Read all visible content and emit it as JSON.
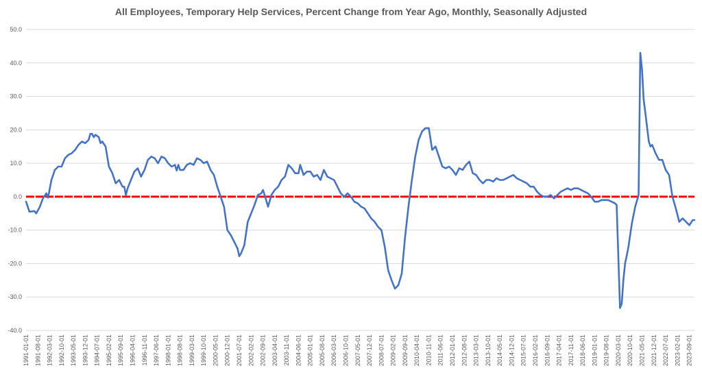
{
  "chart_data": {
    "type": "line",
    "title": "All Employees, Temporary Help Services, Percent Change from Year Ago, Monthly, Seasonally Adjusted",
    "xlabel": "",
    "ylabel": "",
    "ylim": [
      -40,
      50
    ],
    "y_ticks": [
      50,
      40,
      30,
      20,
      10,
      0,
      -10,
      -20,
      -30,
      -40
    ],
    "y_tick_labels": [
      "50.0",
      "40.0",
      "30.0",
      "20.0",
      "10.0",
      "0.0",
      "-10.0",
      "-20.0",
      "-30.0",
      "-40.0"
    ],
    "x_start": "1991-01",
    "x_end": "2023-12",
    "x_tick_labels": [
      "1991-01-01",
      "1991-08-01",
      "1992-03-01",
      "1992-10-01",
      "1993-05-01",
      "1993-12-01",
      "1994-07-01",
      "1995-02-01",
      "1995-09-01",
      "1996-04-01",
      "1996-11-01",
      "1997-06-01",
      "1998-01-01",
      "1998-08-01",
      "1999-03-01",
      "1999-10-01",
      "2000-05-01",
      "2000-12-01",
      "2001-07-01",
      "2002-02-01",
      "2002-09-01",
      "2003-04-01",
      "2003-11-01",
      "2004-06-01",
      "2005-01-01",
      "2005-08-01",
      "2006-03-01",
      "2006-10-01",
      "2007-05-01",
      "2007-12-01",
      "2008-07-01",
      "2009-02-01",
      "2009-09-01",
      "2010-04-01",
      "2010-11-01",
      "2011-06-01",
      "2012-01-01",
      "2012-08-01",
      "2013-03-01",
      "2013-10-01",
      "2014-05-01",
      "2014-12-01",
      "2015-07-01",
      "2016-02-01",
      "2016-09-01",
      "2017-04-01",
      "2017-11-01",
      "2018-06-01",
      "2019-01-01",
      "2019-08-01",
      "2020-03-01",
      "2020-10-01",
      "2021-05-01",
      "2021-12-01",
      "2022-07-01",
      "2023-02-01",
      "2023-09-01"
    ],
    "grid": true,
    "legend": "none",
    "series": [
      {
        "color": "#4472C4",
        "points": [
          [
            "1991-01",
            -1.5
          ],
          [
            "1991-03",
            -4.5
          ],
          [
            "1991-06",
            -4.3
          ],
          [
            "1991-07",
            -5.0
          ],
          [
            "1991-09",
            -3.2
          ],
          [
            "1991-11",
            -0.5
          ],
          [
            "1992-01",
            1.0
          ],
          [
            "1992-02",
            -0.3
          ],
          [
            "1992-04",
            5.0
          ],
          [
            "1992-06",
            8.0
          ],
          [
            "1992-08",
            9.0
          ],
          [
            "1992-10",
            9.0
          ],
          [
            "1992-12",
            11.5
          ],
          [
            "1993-02",
            12.5
          ],
          [
            "1993-04",
            13.0
          ],
          [
            "1993-06",
            14.0
          ],
          [
            "1993-08",
            15.5
          ],
          [
            "1993-10",
            16.5
          ],
          [
            "1993-12",
            16.0
          ],
          [
            "1994-02",
            17.0
          ],
          [
            "1994-03",
            18.8
          ],
          [
            "1994-04",
            18.8
          ],
          [
            "1994-05",
            17.8
          ],
          [
            "1994-06",
            18.5
          ],
          [
            "1994-08",
            17.8
          ],
          [
            "1994-09",
            16.0
          ],
          [
            "1994-10",
            16.5
          ],
          [
            "1994-12",
            15.0
          ],
          [
            "1995-02",
            9.0
          ],
          [
            "1995-04",
            7.0
          ],
          [
            "1995-06",
            4.0
          ],
          [
            "1995-08",
            5.0
          ],
          [
            "1995-10",
            3.0
          ],
          [
            "1995-11",
            3.0
          ],
          [
            "1995-12",
            0.5
          ],
          [
            "1996-01",
            2.5
          ],
          [
            "1996-03",
            5.0
          ],
          [
            "1996-05",
            7.5
          ],
          [
            "1996-07",
            8.5
          ],
          [
            "1996-09",
            6.0
          ],
          [
            "1996-11",
            8.0
          ],
          [
            "1997-01",
            11.0
          ],
          [
            "1997-03",
            12.0
          ],
          [
            "1997-05",
            11.5
          ],
          [
            "1997-07",
            10.0
          ],
          [
            "1997-09",
            12.0
          ],
          [
            "1997-11",
            11.5
          ],
          [
            "1998-01",
            10.0
          ],
          [
            "1998-03",
            9.0
          ],
          [
            "1998-05",
            9.5
          ],
          [
            "1998-06",
            7.8
          ],
          [
            "1998-07",
            9.5
          ],
          [
            "1998-08",
            8.0
          ],
          [
            "1998-10",
            8.0
          ],
          [
            "1998-12",
            9.5
          ],
          [
            "1999-02",
            10.0
          ],
          [
            "1999-04",
            9.5
          ],
          [
            "1999-06",
            11.5
          ],
          [
            "1999-08",
            11.0
          ],
          [
            "1999-10",
            10.0
          ],
          [
            "1999-12",
            10.5
          ],
          [
            "2000-02",
            8.0
          ],
          [
            "2000-04",
            6.5
          ],
          [
            "2000-06",
            3.0
          ],
          [
            "2000-08",
            0.0
          ],
          [
            "2000-10",
            -3.0
          ],
          [
            "2000-12",
            -10.0
          ],
          [
            "2001-02",
            -11.5
          ],
          [
            "2001-04",
            -13.5
          ],
          [
            "2001-06",
            -15.5
          ],
          [
            "2001-07",
            -17.8
          ],
          [
            "2001-08",
            -17.0
          ],
          [
            "2001-10",
            -14.5
          ],
          [
            "2001-12",
            -7.5
          ],
          [
            "2002-02",
            -5.0
          ],
          [
            "2002-04",
            -2.5
          ],
          [
            "2002-06",
            0.5
          ],
          [
            "2002-08",
            1.0
          ],
          [
            "2002-09",
            2.0
          ],
          [
            "2002-10",
            0.5
          ],
          [
            "2002-12",
            -3.0
          ],
          [
            "2003-02",
            0.5
          ],
          [
            "2003-04",
            2.0
          ],
          [
            "2003-06",
            3.0
          ],
          [
            "2003-08",
            5.0
          ],
          [
            "2003-10",
            6.0
          ],
          [
            "2003-12",
            9.5
          ],
          [
            "2004-02",
            8.5
          ],
          [
            "2004-04",
            7.0
          ],
          [
            "2004-06",
            7.0
          ],
          [
            "2004-07",
            9.5
          ],
          [
            "2004-09",
            6.5
          ],
          [
            "2004-11",
            7.5
          ],
          [
            "2005-01",
            7.5
          ],
          [
            "2005-03",
            6.0
          ],
          [
            "2005-05",
            6.5
          ],
          [
            "2005-07",
            5.0
          ],
          [
            "2005-09",
            8.0
          ],
          [
            "2005-11",
            6.0
          ],
          [
            "2006-01",
            5.5
          ],
          [
            "2006-03",
            5.0
          ],
          [
            "2006-05",
            3.0
          ],
          [
            "2006-07",
            1.0
          ],
          [
            "2006-09",
            0.0
          ],
          [
            "2006-11",
            1.0
          ],
          [
            "2007-01",
            0.0
          ],
          [
            "2007-03",
            -1.5
          ],
          [
            "2007-05",
            -2.0
          ],
          [
            "2007-07",
            -3.0
          ],
          [
            "2007-09",
            -3.5
          ],
          [
            "2007-11",
            -5.0
          ],
          [
            "2008-01",
            -6.5
          ],
          [
            "2008-03",
            -7.5
          ],
          [
            "2008-05",
            -9.0
          ],
          [
            "2008-07",
            -10.0
          ],
          [
            "2008-09",
            -15.0
          ],
          [
            "2008-11",
            -22.0
          ],
          [
            "2009-01",
            -25.0
          ],
          [
            "2009-03",
            -27.5
          ],
          [
            "2009-05",
            -26.5
          ],
          [
            "2009-07",
            -23.0
          ],
          [
            "2009-09",
            -12.0
          ],
          [
            "2009-11",
            -3.0
          ],
          [
            "2010-01",
            5.0
          ],
          [
            "2010-03",
            12.0
          ],
          [
            "2010-05",
            17.0
          ],
          [
            "2010-07",
            19.5
          ],
          [
            "2010-09",
            20.5
          ],
          [
            "2010-11",
            20.5
          ],
          [
            "2011-01",
            14.0
          ],
          [
            "2011-03",
            15.0
          ],
          [
            "2011-05",
            12.0
          ],
          [
            "2011-07",
            9.0
          ],
          [
            "2011-09",
            8.5
          ],
          [
            "2011-11",
            9.0
          ],
          [
            "2012-01",
            8.0
          ],
          [
            "2012-03",
            6.5
          ],
          [
            "2012-05",
            8.5
          ],
          [
            "2012-07",
            8.0
          ],
          [
            "2012-09",
            9.5
          ],
          [
            "2012-11",
            10.5
          ],
          [
            "2013-01",
            7.0
          ],
          [
            "2013-03",
            6.5
          ],
          [
            "2013-05",
            5.0
          ],
          [
            "2013-07",
            4.0
          ],
          [
            "2013-09",
            5.0
          ],
          [
            "2013-11",
            5.0
          ],
          [
            "2014-01",
            4.5
          ],
          [
            "2014-03",
            5.5
          ],
          [
            "2014-05",
            5.0
          ],
          [
            "2014-07",
            5.0
          ],
          [
            "2014-09",
            5.5
          ],
          [
            "2014-11",
            6.0
          ],
          [
            "2015-01",
            6.5
          ],
          [
            "2015-03",
            5.5
          ],
          [
            "2015-05",
            5.0
          ],
          [
            "2015-07",
            4.5
          ],
          [
            "2015-09",
            4.0
          ],
          [
            "2015-11",
            3.0
          ],
          [
            "2016-01",
            3.0
          ],
          [
            "2016-03",
            1.5
          ],
          [
            "2016-05",
            0.5
          ],
          [
            "2016-07",
            0.0
          ],
          [
            "2016-09",
            0.0
          ],
          [
            "2016-11",
            0.5
          ],
          [
            "2017-01",
            -0.5
          ],
          [
            "2017-03",
            0.5
          ],
          [
            "2017-05",
            1.5
          ],
          [
            "2017-07",
            2.0
          ],
          [
            "2017-09",
            2.5
          ],
          [
            "2017-11",
            2.0
          ],
          [
            "2018-01",
            2.5
          ],
          [
            "2018-03",
            2.5
          ],
          [
            "2018-05",
            2.0
          ],
          [
            "2018-07",
            1.5
          ],
          [
            "2018-09",
            1.0
          ],
          [
            "2018-11",
            0.0
          ],
          [
            "2019-01",
            -1.5
          ],
          [
            "2019-03",
            -1.5
          ],
          [
            "2019-05",
            -1.0
          ],
          [
            "2019-07",
            -1.0
          ],
          [
            "2019-09",
            -1.0
          ],
          [
            "2019-11",
            -1.5
          ],
          [
            "2020-01",
            -2.0
          ],
          [
            "2020-02",
            -2.5
          ],
          [
            "2020-04",
            -33.3
          ],
          [
            "2020-05",
            -32.0
          ],
          [
            "2020-06",
            -25.0
          ],
          [
            "2020-07",
            -20.0
          ],
          [
            "2020-08",
            -17.5
          ],
          [
            "2020-09",
            -15.0
          ],
          [
            "2020-11",
            -8.0
          ],
          [
            "2021-01",
            -3.0
          ],
          [
            "2021-03",
            0.5
          ],
          [
            "2021-04",
            43.0
          ],
          [
            "2021-05",
            38.0
          ],
          [
            "2021-06",
            29.0
          ],
          [
            "2021-07",
            25.0
          ],
          [
            "2021-09",
            16.5
          ],
          [
            "2021-10",
            15.0
          ],
          [
            "2021-11",
            15.5
          ],
          [
            "2022-01",
            13.0
          ],
          [
            "2022-03",
            11.0
          ],
          [
            "2022-05",
            11.0
          ],
          [
            "2022-07",
            8.0
          ],
          [
            "2022-09",
            6.5
          ],
          [
            "2022-11",
            0.0
          ],
          [
            "2023-01",
            -3.5
          ],
          [
            "2023-03",
            -7.5
          ],
          [
            "2023-05",
            -6.5
          ],
          [
            "2023-07",
            -7.5
          ],
          [
            "2023-09",
            -8.5
          ],
          [
            "2023-11",
            -7.0
          ],
          [
            "2023-12",
            -7.0
          ]
        ]
      }
    ],
    "reference_line": {
      "y": 0,
      "color": "#FF0000",
      "style": "dotted"
    },
    "gridline_color": "#D9D9D9"
  }
}
